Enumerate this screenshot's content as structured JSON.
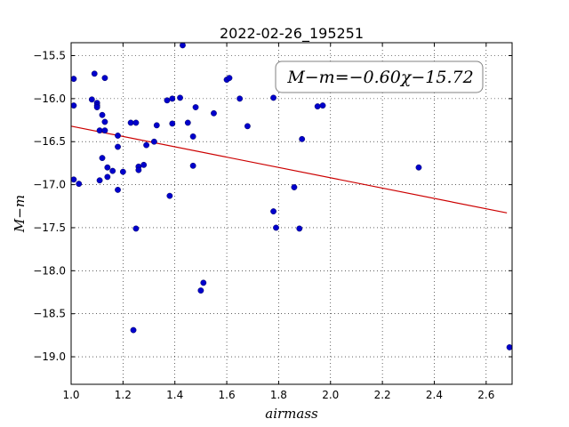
{
  "chart_data": {
    "type": "scatter",
    "title": "2022-02-26_195251",
    "xlabel": "airmass",
    "ylabel": "M−m",
    "xlim": [
      1.0,
      2.7
    ],
    "ylim": [
      -15.35,
      -19.32
    ],
    "y_inverted": true,
    "grid": true,
    "x_ticks": [
      1.0,
      1.2,
      1.4,
      1.6,
      1.8,
      2.0,
      2.2,
      2.4,
      2.6
    ],
    "x_tick_labels": [
      "1.0",
      "1.2",
      "1.4",
      "1.6",
      "1.8",
      "2.0",
      "2.2",
      "2.4",
      "2.6"
    ],
    "y_ticks": [
      -15.5,
      -16.0,
      -16.5,
      -17.0,
      -17.5,
      -18.0,
      -18.5,
      -19.0
    ],
    "y_tick_labels": [
      "−15.5",
      "−16.0",
      "−16.5",
      "−17.0",
      "−17.5",
      "−18.0",
      "−18.5",
      "−19.0"
    ],
    "annotation": "M−m=−0.60χ−15.72",
    "fit_line": {
      "slope": -0.6,
      "intercept": -15.72,
      "x_range": [
        1.0,
        2.68
      ],
      "color": "#cc0000"
    },
    "point_color": "#0000cc",
    "points": [
      {
        "x": 1.01,
        "y": -15.77
      },
      {
        "x": 1.01,
        "y": -16.08
      },
      {
        "x": 1.01,
        "y": -16.94
      },
      {
        "x": 1.03,
        "y": -16.99
      },
      {
        "x": 1.08,
        "y": -16.01
      },
      {
        "x": 1.09,
        "y": -15.71
      },
      {
        "x": 1.1,
        "y": -16.05
      },
      {
        "x": 1.1,
        "y": -16.08
      },
      {
        "x": 1.1,
        "y": -16.1
      },
      {
        "x": 1.11,
        "y": -16.37
      },
      {
        "x": 1.11,
        "y": -16.95
      },
      {
        "x": 1.12,
        "y": -16.19
      },
      {
        "x": 1.12,
        "y": -16.69
      },
      {
        "x": 1.13,
        "y": -16.27
      },
      {
        "x": 1.13,
        "y": -16.37
      },
      {
        "x": 1.13,
        "y": -15.76
      },
      {
        "x": 1.14,
        "y": -16.91
      },
      {
        "x": 1.14,
        "y": -16.8
      },
      {
        "x": 1.16,
        "y": -16.84
      },
      {
        "x": 1.18,
        "y": -17.06
      },
      {
        "x": 1.18,
        "y": -16.43
      },
      {
        "x": 1.18,
        "y": -16.56
      },
      {
        "x": 1.2,
        "y": -16.85
      },
      {
        "x": 1.23,
        "y": -16.28
      },
      {
        "x": 1.24,
        "y": -18.69
      },
      {
        "x": 1.25,
        "y": -16.28
      },
      {
        "x": 1.25,
        "y": -17.51
      },
      {
        "x": 1.26,
        "y": -16.79
      },
      {
        "x": 1.26,
        "y": -16.83
      },
      {
        "x": 1.28,
        "y": -16.77
      },
      {
        "x": 1.29,
        "y": -16.54
      },
      {
        "x": 1.32,
        "y": -16.5
      },
      {
        "x": 1.33,
        "y": -16.31
      },
      {
        "x": 1.37,
        "y": -16.02
      },
      {
        "x": 1.38,
        "y": -17.13
      },
      {
        "x": 1.39,
        "y": -16.0
      },
      {
        "x": 1.39,
        "y": -16.29
      },
      {
        "x": 1.42,
        "y": -15.99
      },
      {
        "x": 1.43,
        "y": -15.38
      },
      {
        "x": 1.45,
        "y": -16.28
      },
      {
        "x": 1.47,
        "y": -16.44
      },
      {
        "x": 1.47,
        "y": -16.78
      },
      {
        "x": 1.48,
        "y": -16.1
      },
      {
        "x": 1.5,
        "y": -18.23
      },
      {
        "x": 1.51,
        "y": -18.14
      },
      {
        "x": 1.55,
        "y": -16.17
      },
      {
        "x": 1.6,
        "y": -15.78
      },
      {
        "x": 1.61,
        "y": -15.76
      },
      {
        "x": 1.65,
        "y": -16.0
      },
      {
        "x": 1.68,
        "y": -16.32
      },
      {
        "x": 1.78,
        "y": -15.99
      },
      {
        "x": 1.78,
        "y": -17.31
      },
      {
        "x": 1.79,
        "y": -17.5
      },
      {
        "x": 1.86,
        "y": -17.03
      },
      {
        "x": 1.88,
        "y": -17.51
      },
      {
        "x": 1.89,
        "y": -16.47
      },
      {
        "x": 1.95,
        "y": -16.09
      },
      {
        "x": 1.97,
        "y": -16.08
      },
      {
        "x": 2.34,
        "y": -16.8
      },
      {
        "x": 2.69,
        "y": -18.89
      }
    ]
  }
}
